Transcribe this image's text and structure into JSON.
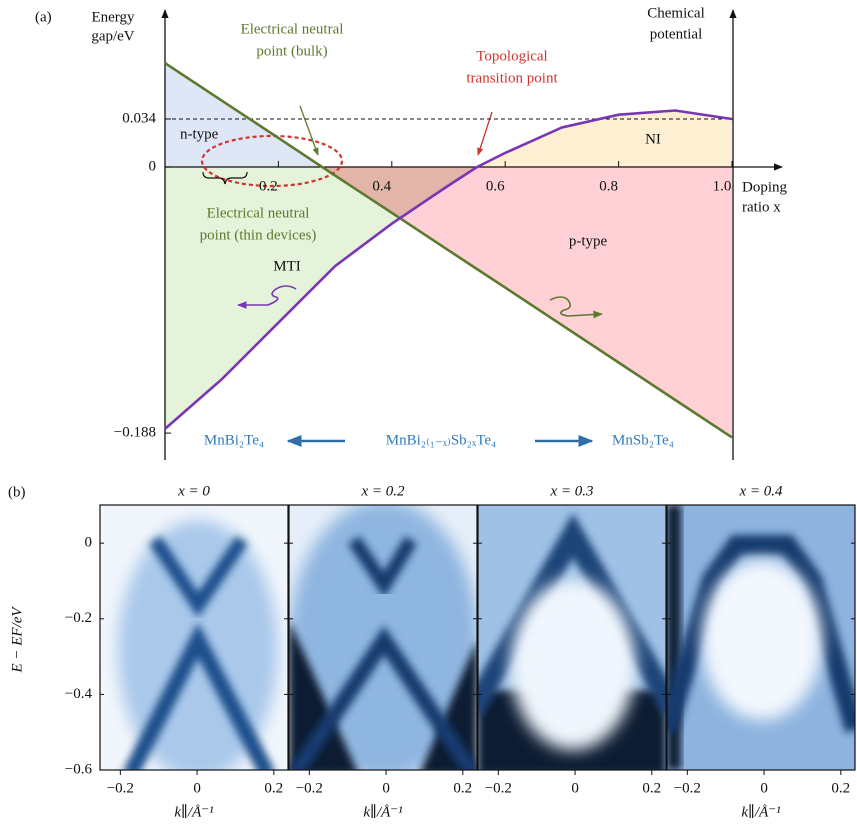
{
  "panel_a": {
    "label": "(a)",
    "y_label": [
      "Energy",
      "gap/eV"
    ],
    "y2_label": [
      "Chemical",
      "potential"
    ],
    "x_label": [
      "Doping",
      "ratio x"
    ],
    "xlim": [
      0,
      1.0
    ],
    "ylim": [
      -0.207,
      0.111
    ],
    "xticks": [
      0.2,
      0.4,
      0.6,
      0.8,
      {
        "value": 1.0,
        "label": "1.0"
      }
    ],
    "yticks": [
      {
        "value": -0.188,
        "label": "−0.188"
      },
      0,
      0.034
    ],
    "x": [
      0,
      0.1,
      0.2,
      0.3,
      0.4,
      0.5,
      0.55,
      0.6,
      0.7,
      0.8,
      0.9,
      1.0
    ],
    "series": [
      {
        "color": "#5b7a2e",
        "values": [
          0.0735,
          0.047,
          0.0206,
          -0.006,
          -0.0323,
          -0.0588,
          -0.072,
          -0.0852,
          -0.1117,
          -0.1381,
          -0.1646,
          -0.191
        ]
      },
      {
        "color": "#7a35b5",
        "values": [
          -0.185,
          -0.15,
          -0.11,
          -0.07,
          -0.04,
          -0.013,
          0,
          0.01,
          0.028,
          0.037,
          0.04,
          0.034
        ]
      }
    ],
    "regions": {
      "n_type": "n-type",
      "ni": "NI",
      "mti": "MTI",
      "p_type": "p-type"
    },
    "annotations": {
      "bulk": [
        "Electrical neutral",
        "point (bulk)"
      ],
      "topological": [
        "Topological",
        "transition point"
      ],
      "thin": [
        "Electrical neutral",
        "point (thin devices)"
      ]
    },
    "formulas": {
      "left": "MnBi₂Te₄",
      "center": "MnBi₂₍₁₋ₓ₎Sb₂ₓTe₄",
      "right": "MnSb₂Te₄"
    }
  },
  "panel_b": {
    "label": "(b)",
    "y_label": "E − EF/eV",
    "x_label": "k∥/Å⁻¹",
    "ylim": [
      -0.6,
      0.101
    ],
    "yticks": [
      0,
      {
        "value": -0.2,
        "label": "−0.2"
      },
      {
        "value": -0.4,
        "label": "−0.4"
      },
      {
        "value": -0.6,
        "label": "−0.6"
      }
    ],
    "xlim": [
      -0.253,
      0.237
    ],
    "xticks": [
      {
        "value": -0.2,
        "label": "−0.2"
      },
      0,
      0.2
    ],
    "panels": [
      {
        "title": "x = 0"
      },
      {
        "title": "x = 0.2"
      },
      {
        "title": "x = 0.3"
      },
      {
        "title": "x = 0.4"
      }
    ]
  }
}
